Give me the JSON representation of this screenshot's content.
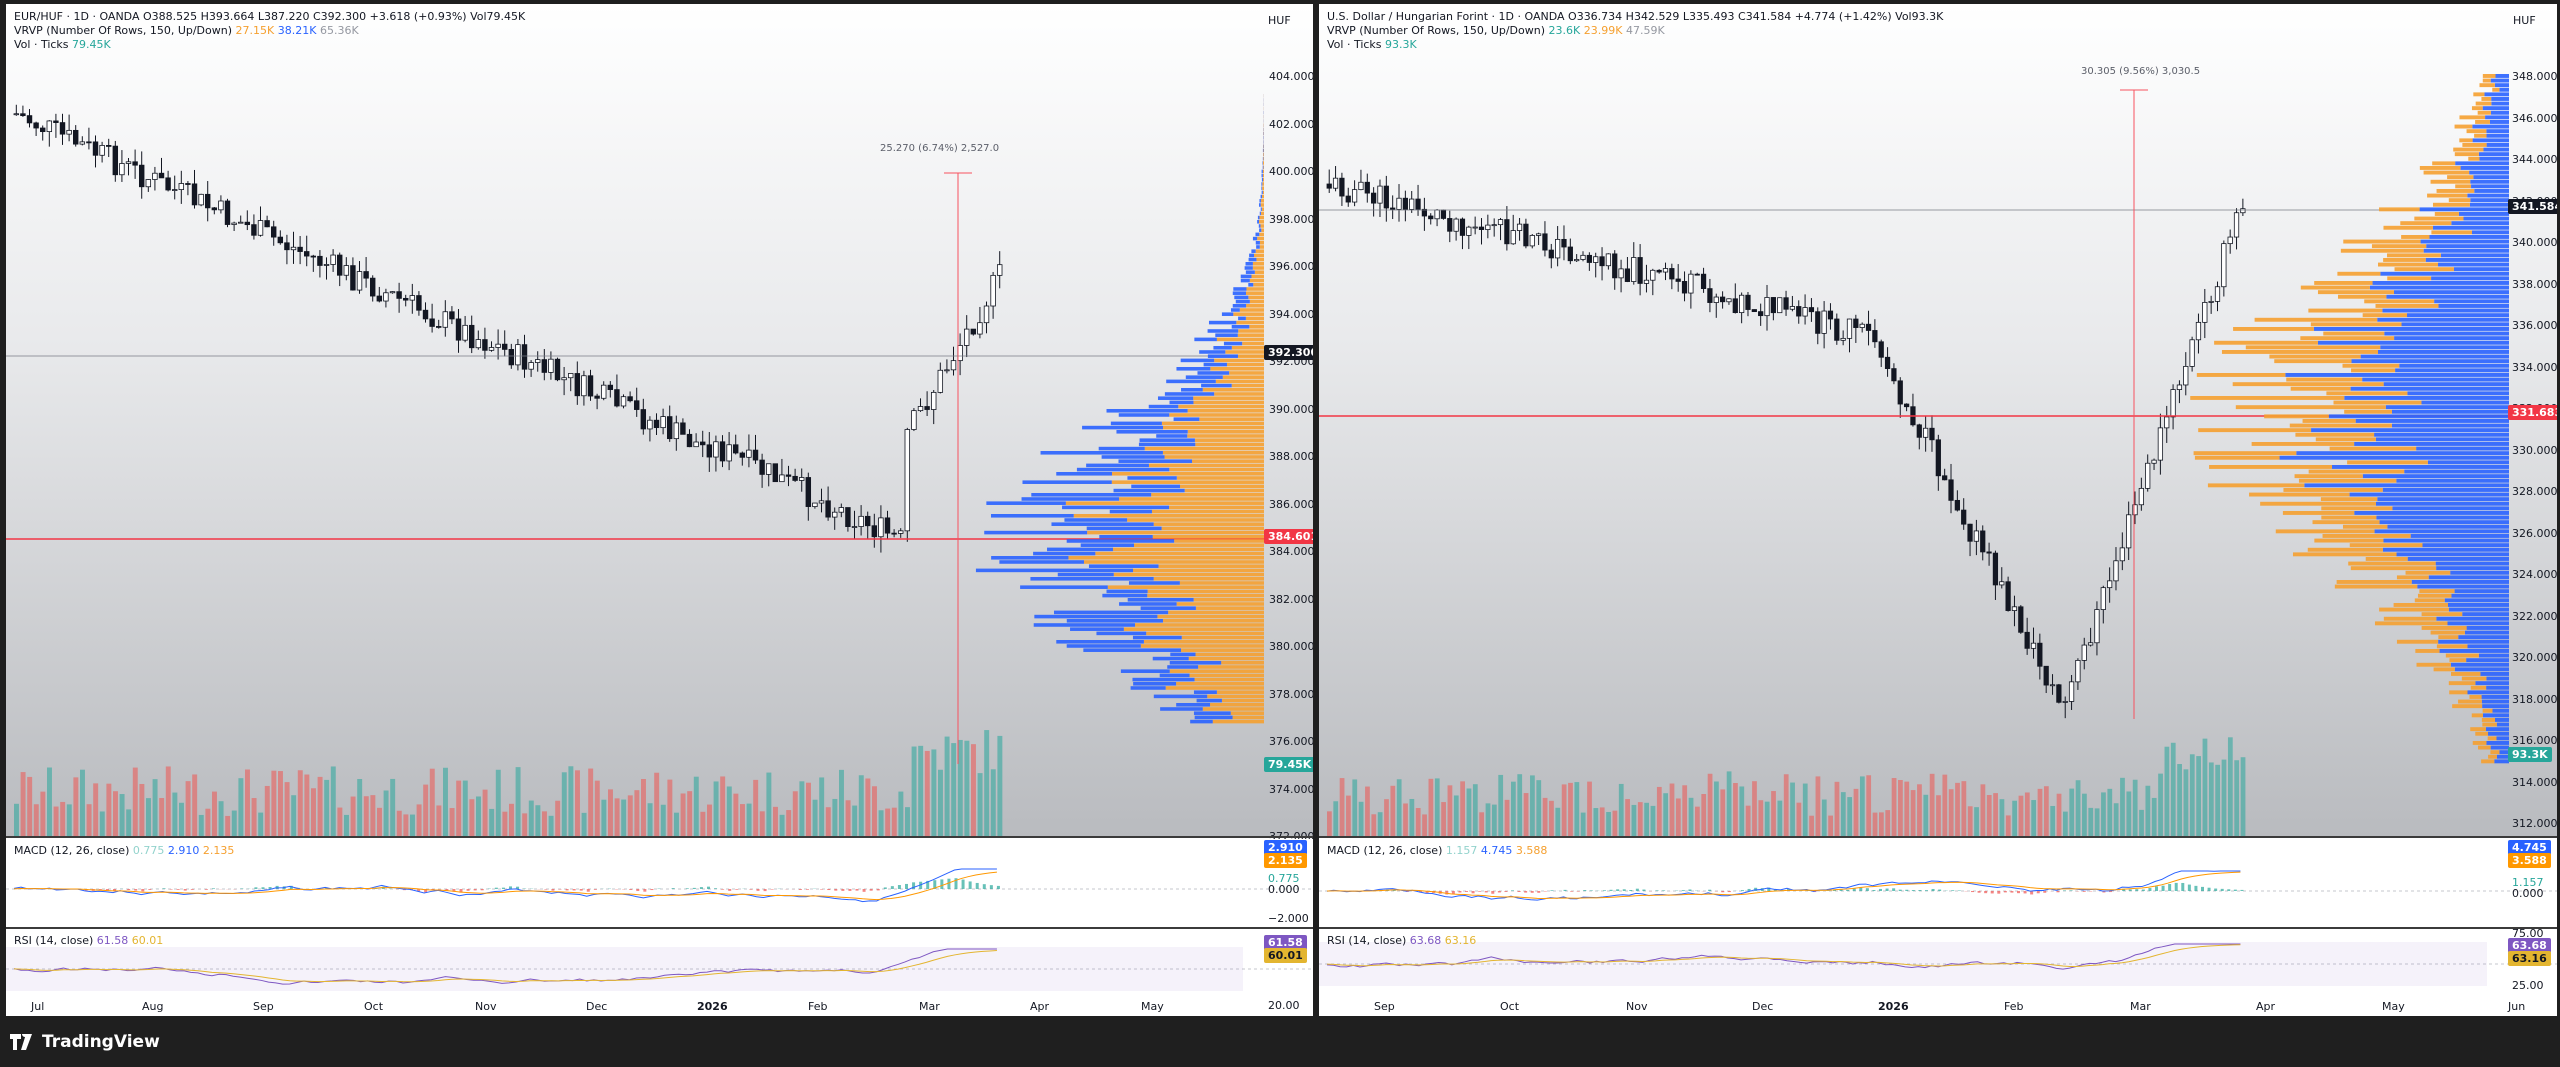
{
  "left": {
    "title": "EUR/HUF · 1D · OANDA",
    "ohlc": "O388.525  H393.664  L387.220  C392.300  +3.618 (+0.93%)  Vol79.45K",
    "vrvp_label": "VRVP (Number Of Rows, 150, Up/Down)",
    "vrvp_v1": "27.15K",
    "vrvp_v2": "38.21K",
    "vrvp_v3": "65.36K",
    "vol_label": "Vol · Ticks",
    "vol_val": "79.45K",
    "currency": "HUF",
    "price_ticks": [
      "404.000",
      "402.000",
      "400.000",
      "398.000",
      "396.000",
      "394.000",
      "392.000",
      "390.000",
      "388.000",
      "386.000",
      "384.000",
      "382.000",
      "380.000",
      "378.000",
      "376.000",
      "374.000",
      "372.000"
    ],
    "last_price": "392.300",
    "poc_price": "384.601",
    "vol_badge": "79.45K",
    "measure_label": "25.270 (6.74%) 2,527.0",
    "macd_label": "MACD (12, 26, close)",
    "macd_v1": "0.775",
    "macd_v2": "2.910",
    "macd_v3": "2.135",
    "macd_badge_blue": "2.910",
    "macd_badge_orange": "2.135",
    "macd_hist": "0.775",
    "macd_zero": "0.000",
    "macd_neg": "−2.000",
    "rsi_label": "RSI (14, close)",
    "rsi_v1": "61.58",
    "rsi_v2": "60.01",
    "rsi_badge": "61.58",
    "rsi_badge2": "60.01",
    "rsi_low": "20.00",
    "months": [
      "Jul",
      "Aug",
      "Sep",
      "Oct",
      "Nov",
      "Dec",
      "2026",
      "Feb",
      "Mar",
      "Apr",
      "May"
    ]
  },
  "right": {
    "title": "U.S. Dollar / Hungarian Forint · 1D · OANDA",
    "ohlc": "O336.734  H342.529  L335.493  C341.584  +4.774 (+1.42%)  Vol93.3K",
    "vrvp_label": "VRVP (Number Of Rows, 150, Up/Down)",
    "vrvp_v1": "23.6K",
    "vrvp_v2": "23.99K",
    "vrvp_v3": "47.59K",
    "vol_label": "Vol · Ticks",
    "vol_val": "93.3K",
    "currency": "HUF",
    "price_ticks": [
      "348.000",
      "346.000",
      "344.000",
      "342.000",
      "340.000",
      "338.000",
      "336.000",
      "334.000",
      "332.000",
      "330.000",
      "328.000",
      "326.000",
      "324.000",
      "322.000",
      "320.000",
      "318.000",
      "316.000",
      "314.000",
      "312.000"
    ],
    "last_price": "341.584",
    "poc_price": "331.683",
    "vol_badge": "93.3K",
    "measure_label": "30.305 (9.56%) 3,030.5",
    "macd_label": "MACD (12, 26, close)",
    "macd_v1": "1.157",
    "macd_v2": "4.745",
    "macd_v3": "3.588",
    "macd_badge_blue": "4.745",
    "macd_badge_orange": "3.588",
    "macd_hist": "1.157",
    "macd_zero": "0.000",
    "rsi_label": "RSI (14, close)",
    "rsi_v1": "63.68",
    "rsi_v2": "63.16",
    "rsi_badge": "63.68",
    "rsi_badge2": "63.16",
    "rsi_high": "75.00",
    "rsi_low": "25.00",
    "months": [
      "Sep",
      "Oct",
      "Nov",
      "Dec",
      "2026",
      "Feb",
      "Mar",
      "Apr",
      "May",
      "Jun"
    ]
  },
  "brand": "TradingView",
  "colors": {
    "up": "#26a69a",
    "down": "#ef5350",
    "poc": "#f23645",
    "vrvp_up": "#2962ff",
    "vrvp_down": "#f5a030",
    "macd": "#2962ff",
    "signal": "#ff9800",
    "rsi": "#7e57c2"
  }
}
